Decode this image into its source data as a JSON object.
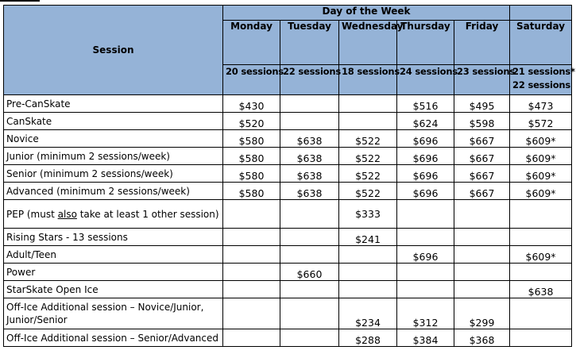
{
  "header": {
    "title": "Day of the Week",
    "session_label": "Session",
    "days": [
      "Monday",
      "Tuesday",
      "Wednesday",
      "Thursday",
      "Friday",
      "Saturday"
    ],
    "session_counts": [
      "20 sessions",
      "22 sessions",
      "18 sessions",
      "24 sessions",
      "23 sessions",
      "21 sessions*"
    ],
    "saturday_extra": "22 sessions"
  },
  "rows": [
    {
      "name": "Pre-CanSkate",
      "prices": [
        "$430",
        "",
        "",
        "$516",
        "$495",
        "$473"
      ]
    },
    {
      "name": "CanSkate",
      "prices": [
        "$520",
        "",
        "",
        "$624",
        "$598",
        "$572"
      ]
    },
    {
      "name": "Novice",
      "prices": [
        "$580",
        "$638",
        "$522",
        "$696",
        "$667",
        "$609*"
      ]
    },
    {
      "name": "Junior (minimum 2 sessions/week)",
      "prices": [
        "$580",
        "$638",
        "$522",
        "$696",
        "$667",
        "$609*"
      ]
    },
    {
      "name": "Senior (minimum 2 sessions/week)",
      "prices": [
        "$580",
        "$638",
        "$522",
        "$696",
        "$667",
        "$609*"
      ]
    },
    {
      "name": "Advanced (minimum 2 sessions/week)",
      "prices": [
        "$580",
        "$638",
        "$522",
        "$696",
        "$667",
        "$609*"
      ]
    },
    {
      "name_parts": [
        "PEP (must ",
        "also",
        " take at least 1 other session)"
      ],
      "prices": [
        "",
        "",
        "$333",
        "",
        "",
        ""
      ]
    },
    {
      "name": "Rising Stars - 13 sessions",
      "prices": [
        "",
        "",
        "$241",
        "",
        "",
        ""
      ]
    },
    {
      "name": "Adult/Teen",
      "prices": [
        "",
        "",
        "",
        "$696",
        "",
        "$609*"
      ]
    },
    {
      "name": "Power",
      "prices": [
        "",
        "$660",
        "",
        "",
        "",
        ""
      ]
    },
    {
      "name": "StarSkate Open Ice",
      "prices": [
        "",
        "",
        "",
        "",
        "",
        "$638"
      ]
    },
    {
      "name": "Off-Ice Additional session – Novice/Junior, Junior/Senior",
      "prices": [
        "",
        "",
        "$234",
        "$312",
        "$299",
        ""
      ]
    },
    {
      "name": "Off-Ice Additional session – Senior/Advanced",
      "prices": [
        "",
        "",
        "$288",
        "$384",
        "$368",
        ""
      ]
    }
  ]
}
